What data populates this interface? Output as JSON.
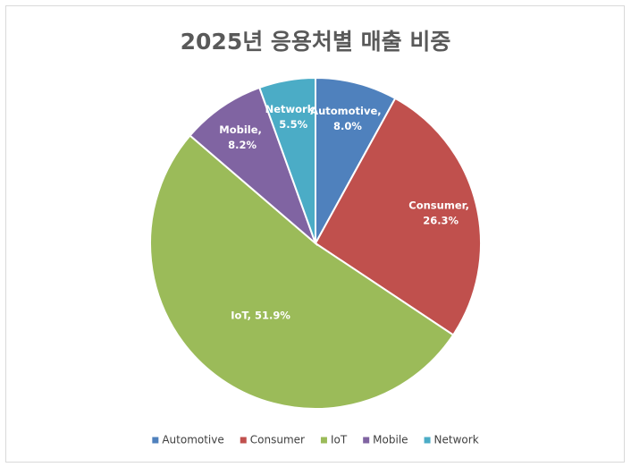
{
  "chart_data": {
    "type": "pie",
    "title": "2025년 응용처별 매출 비중",
    "categories": [
      "Automotive",
      "Consumer",
      "IoT",
      "Mobile",
      "Network"
    ],
    "values": [
      8.0,
      26.3,
      51.9,
      8.2,
      5.5
    ],
    "value_labels": [
      "Automotive, 8.0%",
      "Consumer, 26.3%",
      "IoT, 51.9%",
      "Mobile, 8.2%",
      "Network, 5.5%"
    ],
    "colors": [
      "#4F81BD",
      "#C0504D",
      "#9BBB59",
      "#8064A2",
      "#4BACC6"
    ],
    "legend": "bottom"
  }
}
